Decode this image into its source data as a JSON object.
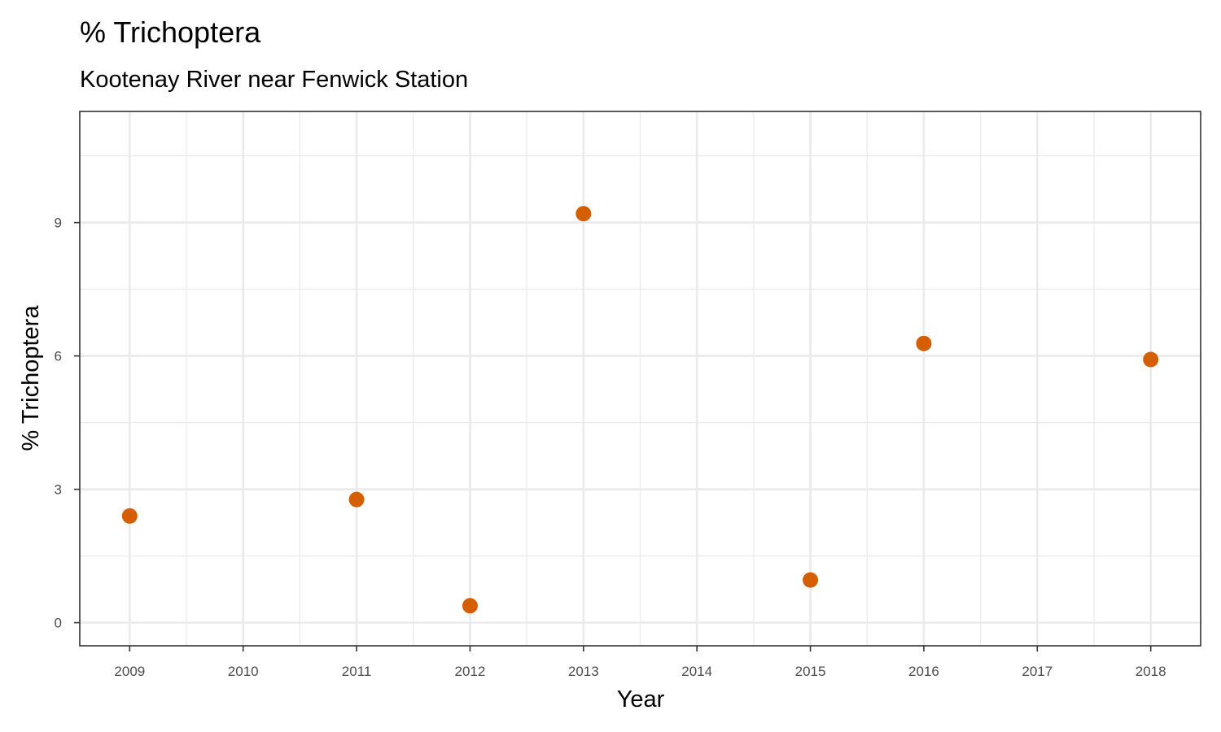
{
  "chart_data": {
    "type": "scatter",
    "title": "% Trichoptera",
    "subtitle": "Kootenay River near Fenwick Station",
    "xlabel": "Year",
    "ylabel": "% Trichoptera",
    "x_ticks": [
      2009,
      2010,
      2011,
      2012,
      2013,
      2014,
      2015,
      2016,
      2017,
      2018
    ],
    "y_ticks": [
      0,
      3,
      6,
      9
    ],
    "xlim": [
      2008.56,
      2018.44
    ],
    "ylim": [
      -0.52,
      11.5
    ],
    "grid": true,
    "point_color": "#D55E00",
    "series": [
      {
        "x": [
          2009,
          2011,
          2012,
          2013,
          2015,
          2016,
          2018
        ],
        "y": [
          2.4,
          2.77,
          0.38,
          9.2,
          0.96,
          6.28,
          5.92
        ]
      }
    ]
  }
}
